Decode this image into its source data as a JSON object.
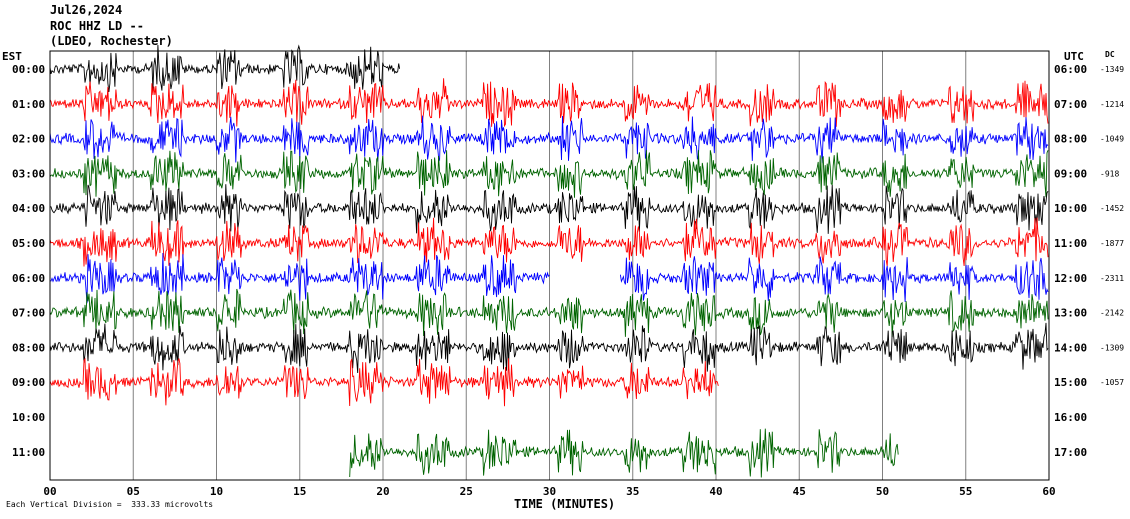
{
  "header": {
    "date": "Jul26,2024",
    "station": "ROC HHZ LD --",
    "network": "(LDEO, Rochester)"
  },
  "left_tz": "EST",
  "right_tz": "UTC",
  "dc_label": "DC",
  "footer": "Each Vertical Division =  333.33 microvolts",
  "colors": {
    "black": "#000000",
    "red": "#ff0000",
    "blue": "#0000ff",
    "green": "#006400",
    "grid": "#808080"
  },
  "chart_data": {
    "type": "line",
    "title": "Jul26,2024 ROC HHZ LD -- (LDEO, Rochester)",
    "xlabel": "TIME (MINUTES)",
    "xlim": [
      0,
      60
    ],
    "x_ticks": [
      "00",
      "05",
      "10",
      "15",
      "20",
      "25",
      "30",
      "35",
      "40",
      "45",
      "50",
      "55",
      "60"
    ],
    "grid": "vertical lines every 5 minutes",
    "rows": [
      {
        "est": "00:00",
        "utc": "06:00",
        "dc": "-1349",
        "color": "black",
        "start": 0,
        "end": 21
      },
      {
        "est": "01:00",
        "utc": "07:00",
        "dc": "-1214",
        "color": "red",
        "start": 0,
        "end": 60
      },
      {
        "est": "02:00",
        "utc": "08:00",
        "dc": "-1049",
        "color": "blue",
        "start": 0,
        "end": 60
      },
      {
        "est": "03:00",
        "utc": "09:00",
        "dc": "-918",
        "color": "green",
        "start": 0,
        "end": 60
      },
      {
        "est": "04:00",
        "utc": "10:00",
        "dc": "-1452",
        "color": "black",
        "start": 0,
        "end": 60
      },
      {
        "est": "05:00",
        "utc": "11:00",
        "dc": "-1877",
        "color": "red",
        "start": 0,
        "end": 60
      },
      {
        "est": "06:00",
        "utc": "12:00",
        "dc": "-2311",
        "color": "blue",
        "start": 0,
        "end": 60,
        "gap": [
          30,
          34.2
        ]
      },
      {
        "est": "07:00",
        "utc": "13:00",
        "dc": "-2142",
        "color": "green",
        "start": 0,
        "end": 60
      },
      {
        "est": "08:00",
        "utc": "14:00",
        "dc": "-1309",
        "color": "black",
        "start": 0,
        "end": 60
      },
      {
        "est": "09:00",
        "utc": "15:00",
        "dc": "-1057",
        "color": "red",
        "start": 0,
        "end": 40.2
      },
      {
        "est": "10:00",
        "utc": "16:00",
        "dc": "",
        "color": "none",
        "start": 0,
        "end": 0
      },
      {
        "est": "11:00",
        "utc": "17:00",
        "dc": "",
        "color": "green",
        "start": 18,
        "end": 51
      }
    ],
    "bursts": [
      {
        "start": 2,
        "end": 4
      },
      {
        "start": 6,
        "end": 8
      },
      {
        "start": 10,
        "end": 11.5
      },
      {
        "start": 14,
        "end": 15.5
      },
      {
        "start": 18,
        "end": 20
      },
      {
        "start": 22,
        "end": 24
      },
      {
        "start": 26,
        "end": 28
      },
      {
        "start": 30.5,
        "end": 32
      },
      {
        "start": 34.5,
        "end": 36
      },
      {
        "start": 38,
        "end": 40
      },
      {
        "start": 42,
        "end": 43.5
      },
      {
        "start": 46,
        "end": 47.5
      },
      {
        "start": 50,
        "end": 51.5
      },
      {
        "start": 54,
        "end": 55.5
      },
      {
        "start": 58,
        "end": 60
      }
    ]
  }
}
